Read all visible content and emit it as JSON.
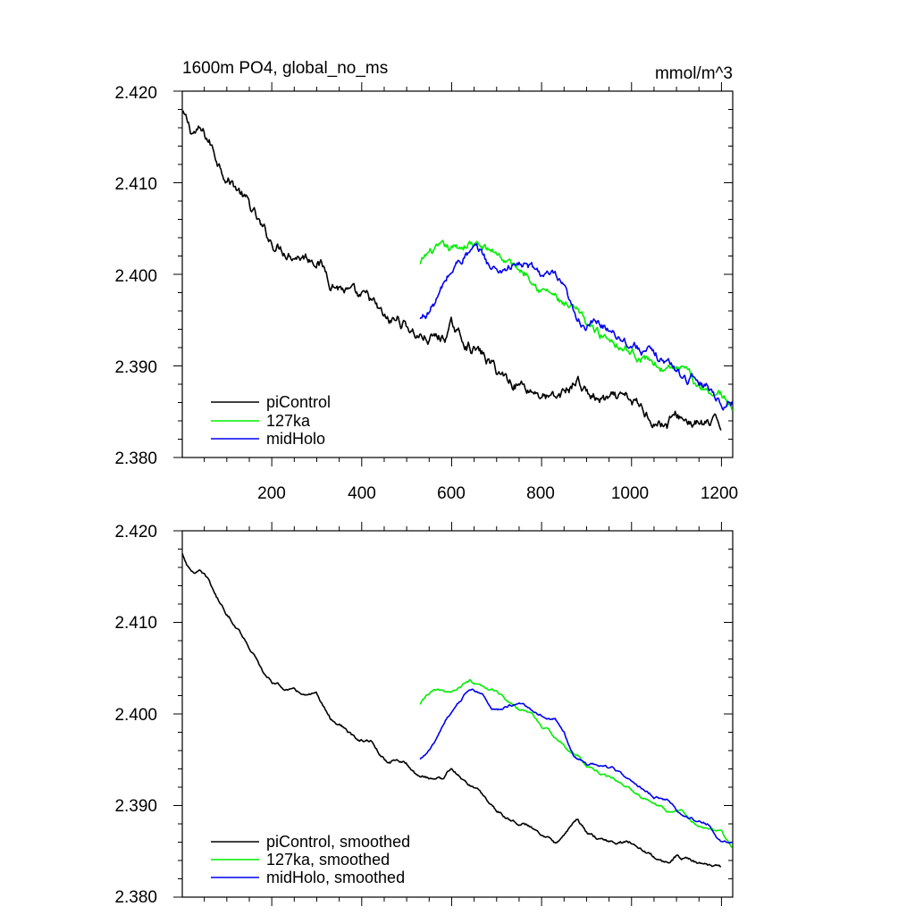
{
  "chart_data": [
    {
      "type": "line",
      "title": "1600m PO4, global_no_ms",
      "units": "mmol/m^3",
      "xlim": [
        1,
        1225
      ],
      "ylim": [
        2.38,
        2.42
      ],
      "xticks": [
        200,
        400,
        600,
        800,
        1000,
        1200
      ],
      "xtick_labels": [
        "200",
        "400",
        "600",
        "800",
        "1000",
        "1200"
      ],
      "yticks": [
        2.38,
        2.39,
        2.4,
        2.41,
        2.42
      ],
      "ytick_labels": [
        "2.380",
        "2.390",
        "2.400",
        "2.410",
        "2.420"
      ],
      "legend_position": "bottom-left",
      "series": [
        {
          "name": "piControl",
          "color": "#000000",
          "noise": 0.00045,
          "x": [
            1,
            20,
            40,
            60,
            80,
            100,
            130,
            160,
            180,
            200,
            220,
            250,
            280,
            300,
            330,
            360,
            390,
            420,
            440,
            460,
            480,
            500,
            520,
            550,
            580,
            600,
            620,
            650,
            680,
            700,
            730,
            760,
            800,
            830,
            860,
            880,
            900,
            930,
            960,
            1000,
            1030,
            1060,
            1080,
            1100,
            1130,
            1160,
            1200
          ],
          "y": [
            2.4175,
            2.4155,
            2.4155,
            2.4145,
            2.4125,
            2.411,
            2.409,
            2.4065,
            2.4045,
            2.4035,
            2.403,
            2.4025,
            2.402,
            2.402,
            2.3995,
            2.3985,
            2.397,
            2.397,
            2.3955,
            2.3945,
            2.395,
            2.3945,
            2.3935,
            2.393,
            2.393,
            2.3942,
            2.393,
            2.392,
            2.3905,
            2.3895,
            2.3885,
            2.388,
            2.387,
            2.386,
            2.3875,
            2.3885,
            2.387,
            2.3862,
            2.386,
            2.386,
            2.385,
            2.384,
            2.3837,
            2.3845,
            2.384,
            2.3835,
            2.3833
          ]
        },
        {
          "name": "127ka",
          "color": "#00ee00",
          "noise": 0.00035,
          "x": [
            530,
            545,
            560,
            580,
            600,
            620,
            640,
            660,
            680,
            700,
            720,
            750,
            780,
            800,
            820,
            840,
            860,
            880,
            900,
            930,
            960,
            990,
            1020,
            1050,
            1080,
            1110,
            1140,
            1170,
            1200,
            1225
          ],
          "y": [
            2.401,
            2.402,
            2.4025,
            2.4025,
            2.4025,
            2.403,
            2.4035,
            2.403,
            2.4025,
            2.4025,
            2.4015,
            2.4005,
            2.4,
            2.3985,
            2.398,
            2.397,
            2.396,
            2.3955,
            2.3945,
            2.3935,
            2.393,
            2.392,
            2.391,
            2.3905,
            2.3895,
            2.3895,
            2.388,
            2.3875,
            2.387,
            2.3855
          ]
        },
        {
          "name": "midHolo",
          "color": "#0000ee",
          "noise": 0.00035,
          "x": [
            530,
            550,
            570,
            590,
            610,
            630,
            650,
            670,
            690,
            710,
            730,
            760,
            790,
            810,
            830,
            850,
            870,
            900,
            930,
            960,
            990,
            1020,
            1050,
            1080,
            1110,
            1140,
            1170,
            1200,
            1225
          ],
          "y": [
            2.395,
            2.396,
            2.3975,
            2.3995,
            2.401,
            2.4022,
            2.4025,
            2.402,
            2.4005,
            2.4005,
            2.401,
            2.401,
            2.4002,
            2.3998,
            2.3995,
            2.398,
            2.3955,
            2.3945,
            2.3945,
            2.394,
            2.3928,
            2.392,
            2.391,
            2.3905,
            2.389,
            2.3885,
            2.388,
            2.386,
            2.386
          ]
        }
      ]
    },
    {
      "type": "line",
      "title": "",
      "xlim": [
        1,
        1225
      ],
      "ylim": [
        2.38,
        2.42
      ],
      "yticks": [
        2.38,
        2.39,
        2.4,
        2.41,
        2.42
      ],
      "ytick_labels": [
        "2.380",
        "2.390",
        "2.400",
        "2.410",
        "2.420"
      ],
      "legend_position": "bottom-left",
      "series": [
        {
          "name": "piControl, smoothed",
          "color": "#000000",
          "noise": 0.00012
        },
        {
          "name": "127ka, smoothed",
          "color": "#00ee00",
          "noise": 0.0001
        },
        {
          "name": "midHolo, smoothed",
          "color": "#0000ee",
          "noise": 0.0001
        }
      ]
    }
  ]
}
